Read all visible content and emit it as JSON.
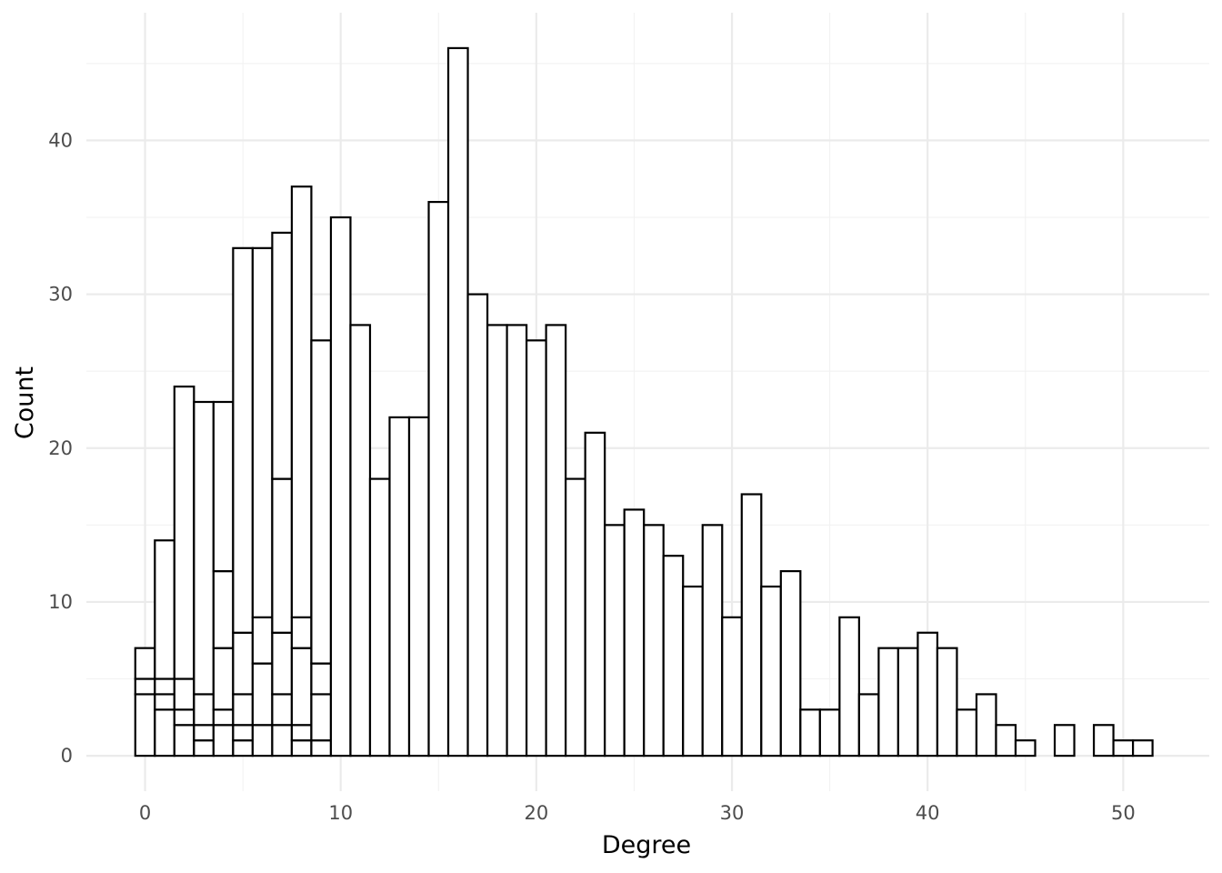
{
  "chart_data": {
    "type": "bar",
    "subtype": "stacked histogram (outlined bars)",
    "xlabel": "Degree",
    "ylabel": "Count",
    "xlim": [
      -3,
      54.4
    ],
    "ylim": [
      -2.3,
      48.3
    ],
    "x_ticks": [
      0,
      10,
      20,
      30,
      40,
      50
    ],
    "x_tick_labels": [
      "0",
      "10",
      "20",
      "30",
      "40",
      "50"
    ],
    "y_ticks": [
      0,
      10,
      20,
      30,
      40
    ],
    "y_tick_labels": [
      "0",
      "10",
      "20",
      "30",
      "40"
    ],
    "bin_width": 1,
    "grid": true,
    "legend": "none",
    "fill_color": "#ffffff",
    "outline_color": "#000000",
    "bars": [
      {
        "x": 0,
        "stack": [
          4,
          1,
          2
        ]
      },
      {
        "x": 1,
        "stack": [
          3,
          1,
          1,
          9
        ]
      },
      {
        "x": 2,
        "stack": [
          2,
          1,
          2,
          19
        ]
      },
      {
        "x": 3,
        "stack": [
          1,
          1,
          2,
          19
        ]
      },
      {
        "x": 4,
        "stack": [
          2,
          1,
          4,
          5,
          11
        ]
      },
      {
        "x": 5,
        "stack": [
          1,
          1,
          2,
          4,
          25
        ]
      },
      {
        "x": 6,
        "stack": [
          2,
          4,
          3,
          24
        ]
      },
      {
        "x": 7,
        "stack": [
          2,
          2,
          4,
          10,
          16
        ]
      },
      {
        "x": 8,
        "stack": [
          1,
          1,
          5,
          2,
          28
        ]
      },
      {
        "x": 9,
        "stack": [
          1,
          3,
          2,
          21
        ]
      },
      {
        "x": 10,
        "stack": [
          35
        ]
      },
      {
        "x": 11,
        "stack": [
          28
        ]
      },
      {
        "x": 12,
        "stack": [
          18
        ]
      },
      {
        "x": 13,
        "stack": [
          22
        ]
      },
      {
        "x": 14,
        "stack": [
          22
        ]
      },
      {
        "x": 15,
        "stack": [
          36
        ]
      },
      {
        "x": 16,
        "stack": [
          46
        ]
      },
      {
        "x": 17,
        "stack": [
          30
        ]
      },
      {
        "x": 18,
        "stack": [
          28
        ]
      },
      {
        "x": 19,
        "stack": [
          28
        ]
      },
      {
        "x": 20,
        "stack": [
          27
        ]
      },
      {
        "x": 21,
        "stack": [
          28
        ]
      },
      {
        "x": 22,
        "stack": [
          18
        ]
      },
      {
        "x": 23,
        "stack": [
          21
        ]
      },
      {
        "x": 24,
        "stack": [
          15
        ]
      },
      {
        "x": 25,
        "stack": [
          16
        ]
      },
      {
        "x": 26,
        "stack": [
          15
        ]
      },
      {
        "x": 27,
        "stack": [
          13
        ]
      },
      {
        "x": 28,
        "stack": [
          11
        ]
      },
      {
        "x": 29,
        "stack": [
          15
        ]
      },
      {
        "x": 30,
        "stack": [
          9
        ]
      },
      {
        "x": 31,
        "stack": [
          17
        ]
      },
      {
        "x": 32,
        "stack": [
          11
        ]
      },
      {
        "x": 33,
        "stack": [
          12
        ]
      },
      {
        "x": 34,
        "stack": [
          3
        ]
      },
      {
        "x": 35,
        "stack": [
          3
        ]
      },
      {
        "x": 36,
        "stack": [
          9
        ]
      },
      {
        "x": 37,
        "stack": [
          4
        ]
      },
      {
        "x": 38,
        "stack": [
          7
        ]
      },
      {
        "x": 39,
        "stack": [
          7
        ]
      },
      {
        "x": 40,
        "stack": [
          8
        ]
      },
      {
        "x": 41,
        "stack": [
          7
        ]
      },
      {
        "x": 42,
        "stack": [
          3
        ]
      },
      {
        "x": 43,
        "stack": [
          4
        ]
      },
      {
        "x": 44,
        "stack": [
          2
        ]
      },
      {
        "x": 45,
        "stack": [
          1
        ]
      },
      {
        "x": 47,
        "stack": [
          2
        ]
      },
      {
        "x": 49,
        "stack": [
          2
        ]
      },
      {
        "x": 50,
        "stack": [
          1
        ]
      },
      {
        "x": 51,
        "stack": [
          1
        ]
      }
    ]
  }
}
